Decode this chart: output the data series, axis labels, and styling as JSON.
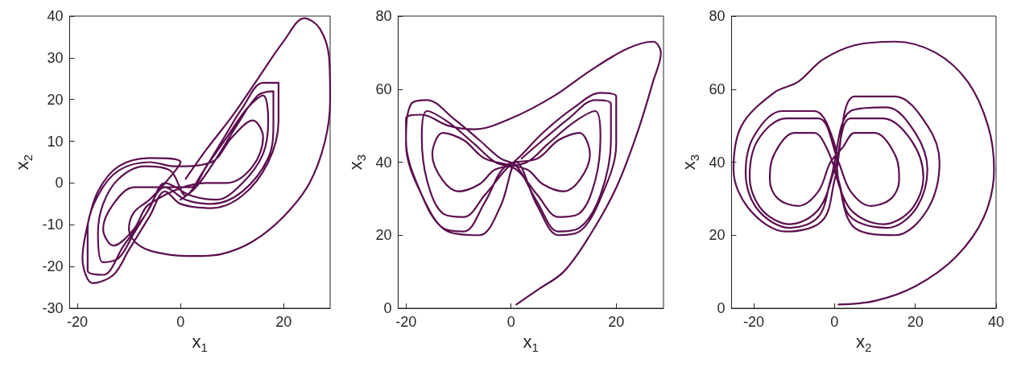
{
  "chart_data": [
    {
      "type": "line",
      "xlabel": "x$_{1}$",
      "ylabel": "x$_{2}$",
      "xlim": [
        -21.5,
        29
      ],
      "ylim": [
        -30,
        40
      ],
      "xticks": [
        -20,
        0,
        20
      ],
      "yticks": [
        -30,
        -20,
        -10,
        0,
        10,
        20,
        30,
        40
      ],
      "color": "#5c0f4f",
      "x": [
        1,
        5,
        10,
        15,
        20,
        24,
        27,
        28.8,
        29,
        28,
        25,
        20,
        14,
        8,
        3,
        -3,
        -8,
        -10,
        -9,
        -6,
        -3,
        0,
        -6,
        -12,
        -16,
        -18,
        -19,
        -17,
        -13,
        -10,
        -6,
        -3,
        0,
        6,
        12,
        17,
        19,
        19,
        16,
        12,
        8,
        4,
        1,
        -2,
        -7,
        -12,
        -15,
        -16,
        -15,
        -12,
        -9,
        -6,
        -3,
        2,
        7,
        12,
        16,
        17,
        16,
        13,
        9,
        5,
        2,
        -5,
        -9,
        -13,
        -15,
        -13,
        -9,
        -6,
        5,
        9,
        14,
        16,
        14,
        10,
        6,
        -1,
        -6,
        -12,
        -16,
        -18,
        -18,
        -15,
        -11,
        -7,
        -3,
        1,
        6,
        12,
        17,
        18,
        18,
        15,
        11,
        7,
        3,
        0
      ],
      "values": [
        1,
        8,
        16,
        25,
        34,
        39.5,
        37,
        30,
        20,
        10,
        0,
        -8,
        -14,
        -17,
        -17.5,
        -17,
        -15,
        -11,
        -7,
        -4,
        0,
        5,
        6,
        4,
        -2,
        -10,
        -18,
        -24,
        -22,
        -16,
        -8,
        -2,
        -5,
        -6,
        -3,
        5,
        15,
        24,
        24,
        18,
        10,
        2,
        -3,
        3,
        4,
        1,
        -5,
        -12,
        -19,
        -18,
        -12,
        -6,
        0,
        -3,
        -4,
        0,
        7,
        15,
        21,
        18,
        11,
        4,
        -1,
        -1,
        -1,
        -5,
        -11,
        -15,
        -11,
        -5,
        0,
        0,
        4,
        11,
        15,
        11,
        5,
        4,
        5,
        3,
        -3,
        -11,
        -21,
        -22,
        -15,
        -8,
        -1,
        -4,
        -5,
        -2,
        6,
        14,
        22,
        21,
        14,
        6,
        -1,
        -4
      ]
    },
    {
      "type": "line",
      "xlabel": "x$_{1}$",
      "ylabel": "x$_{3}$",
      "xlim": [
        -21.5,
        29
      ],
      "ylim": [
        0,
        80
      ],
      "xticks": [
        -20,
        0,
        20
      ],
      "yticks": [
        0,
        20,
        40,
        60,
        80
      ],
      "color": "#5c0f4f",
      "x": [
        1,
        5,
        10,
        15,
        20,
        24,
        27,
        28.5,
        27,
        22,
        15,
        8,
        0,
        -7,
        -12,
        -17,
        -20,
        -20,
        -17,
        -12,
        -6,
        -2,
        1,
        5,
        9,
        13,
        17,
        20,
        20,
        17,
        12,
        6,
        2,
        -1,
        -5,
        -9,
        -13,
        -16,
        -17,
        -16,
        -12,
        -7,
        -3,
        1,
        5,
        9,
        13,
        16,
        17,
        16,
        12,
        7,
        3,
        -3,
        -6,
        -10,
        -13,
        -15,
        -13,
        -9,
        -5,
        3,
        6,
        10,
        13,
        15,
        13,
        9,
        5,
        -1,
        -5,
        -9,
        -13,
        -17,
        -20,
        -19,
        -16,
        -11,
        -6,
        -2,
        1,
        5,
        9,
        13,
        17,
        19,
        19,
        16,
        11,
        6,
        2
      ],
      "values": [
        1,
        5,
        10,
        20,
        33,
        48,
        62,
        70,
        73,
        71,
        65,
        58,
        52,
        49,
        50,
        53,
        52,
        45,
        31,
        21,
        20,
        28,
        40,
        28,
        20,
        21,
        30,
        45,
        58,
        59,
        55,
        48,
        42,
        38,
        31,
        25,
        26,
        35,
        47,
        54,
        51,
        45,
        40,
        38,
        31,
        25,
        26,
        35,
        47,
        54,
        51,
        45,
        40,
        38,
        34,
        32,
        35,
        42,
        48,
        46,
        41,
        38,
        34,
        32,
        35,
        42,
        48,
        46,
        41,
        39,
        29,
        21,
        22,
        31,
        46,
        56,
        57,
        52,
        46,
        41,
        39,
        29,
        21,
        22,
        31,
        46,
        56,
        57,
        52,
        46,
        41
      ]
    },
    {
      "type": "line",
      "xlabel": "x$_{2}$",
      "ylabel": "x$_{3}$",
      "xlim": [
        -25.5,
        40
      ],
      "ylim": [
        0,
        80
      ],
      "xticks": [
        -20,
        0,
        20,
        40
      ],
      "yticks": [
        0,
        20,
        40,
        60,
        80
      ],
      "color": "#5c0f4f",
      "x": [
        1,
        10,
        20,
        30,
        37,
        39.5,
        38,
        33,
        25,
        15,
        5,
        -3,
        -9,
        -15,
        -23,
        -25,
        -21,
        -12,
        -3,
        0,
        5,
        15,
        23,
        26,
        23,
        15,
        5,
        1,
        0,
        -5,
        -13,
        -20,
        -22,
        -19,
        -11,
        -4,
        -1,
        4,
        13,
        20,
        23,
        20,
        13,
        4,
        1,
        -2,
        -5,
        -10,
        -15,
        -16,
        -14,
        -9,
        -4,
        -1,
        2,
        5,
        10,
        15,
        16,
        14,
        9,
        4,
        1,
        -4,
        -12,
        -19,
        -21,
        -18,
        -11,
        -4,
        0,
        4,
        12,
        19,
        22,
        19,
        12,
        4,
        0
      ],
      "values": [
        1,
        2,
        6,
        14,
        25,
        38,
        50,
        62,
        70,
        73,
        72,
        68,
        62,
        59,
        50,
        38,
        27,
        21,
        24,
        35,
        58,
        58,
        50,
        40,
        27,
        20,
        22,
        35,
        45,
        54,
        54,
        47,
        37,
        27,
        22,
        25,
        35,
        54,
        55,
        48,
        38,
        27,
        22,
        25,
        35,
        44,
        48,
        48,
        42,
        35,
        30,
        28,
        32,
        40,
        44,
        48,
        48,
        42,
        35,
        30,
        28,
        32,
        40,
        52,
        52,
        46,
        36,
        27,
        23,
        27,
        38,
        52,
        52,
        46,
        36,
        27,
        23,
        27,
        38
      ]
    }
  ]
}
